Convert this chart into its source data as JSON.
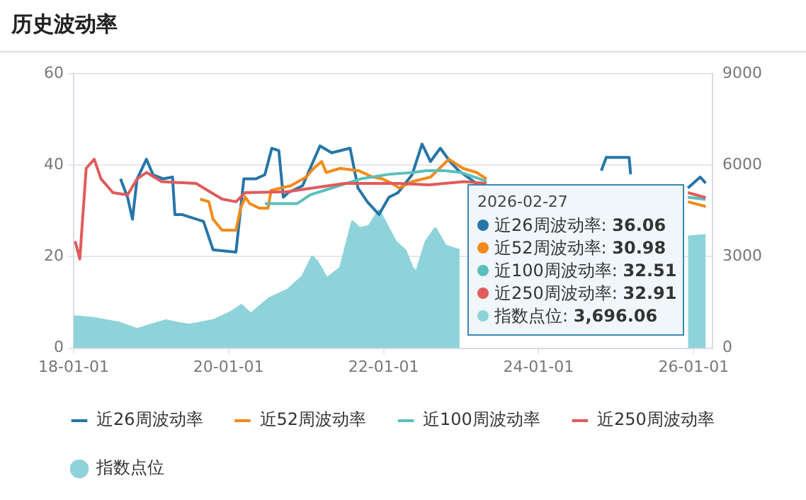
{
  "chart_data": {
    "type": "line",
    "title": "历史波动率",
    "xlim": [
      "2018-01-01",
      "2026-03-31"
    ],
    "xticks": [
      {
        "value": "2018-01-01",
        "label": "18-01-01"
      },
      {
        "value": "2020-01-01",
        "label": "20-01-01"
      },
      {
        "value": "2022-01-01",
        "label": "22-01-01"
      },
      {
        "value": "2024-01-01",
        "label": "24-01-01"
      },
      {
        "value": "2026-01-01",
        "label": "26-01-01"
      }
    ],
    "ylim": [
      0,
      60
    ],
    "yticks": [
      0,
      20,
      40,
      60
    ],
    "y2lim": [
      0,
      9000
    ],
    "y2ticks": [
      0,
      3000,
      6000,
      9000
    ],
    "grid": "y",
    "legend": "bottom",
    "series": [
      {
        "name": "近26周波动率",
        "color": "#2775a8",
        "x": [
          "2018-08-10",
          "2018-09-12",
          "2018-10-05",
          "2018-10-27",
          "2018-12-10",
          "2019-01-10",
          "2019-02-28",
          "2019-04-12",
          "2019-04-23",
          "2019-05-26",
          "2019-09-05",
          "2019-10-20",
          "2020-02-05",
          "2020-03-13",
          "2020-05-08",
          "2020-06-20",
          "2020-07-23",
          "2020-08-25",
          "2020-09-15",
          "2020-10-08",
          "2020-12-15",
          "2021-03-07",
          "2021-05-01",
          "2021-07-27",
          "2021-09-02",
          "2021-10-16",
          "2021-12-10",
          "2022-01-26",
          "2022-03-10",
          "2022-05-15",
          "2022-07-01",
          "2022-08-10",
          "2022-09-25",
          "2022-11-10",
          "2022-12-20",
          "2023-03-15",
          "2023-05-01",
          "2024-01-01",
          "2024-10-23",
          "2024-11-15",
          "2025-03-03",
          "2025-03-10",
          "2025-06-01",
          "2025-12-05",
          "2026-02-01",
          "2026-02-27"
        ],
        "values": [
          37,
          33,
          28.2,
          37,
          41.3,
          37.9,
          37,
          37.4,
          29.2,
          29.2,
          27.7,
          21.5,
          21,
          37,
          37,
          37.9,
          43.7,
          43.2,
          33,
          34,
          35.5,
          44.2,
          42.7,
          43.7,
          35,
          32,
          29.2,
          33,
          34,
          37.9,
          44.6,
          40.8,
          43.7,
          40.8,
          38.8,
          36,
          35.5,
          null,
          38.8,
          41.7,
          41.7,
          38,
          null,
          35,
          37.4,
          36.06
        ]
      },
      {
        "name": "近52周波动率",
        "color": "#f28b1a",
        "x": [
          "2019-08-20",
          "2019-09-30",
          "2019-10-20",
          "2019-12-01",
          "2020-02-05",
          "2020-02-27",
          "2020-03-20",
          "2020-04-10",
          "2020-05-25",
          "2020-07-05",
          "2020-07-20",
          "2020-10-20",
          "2021-01-01",
          "2021-02-05",
          "2021-03-15",
          "2021-04-05",
          "2021-06-10",
          "2021-09-05",
          "2021-11-10",
          "2021-12-25",
          "2022-02-10",
          "2022-03-15",
          "2022-05-15",
          "2022-08-10",
          "2022-11-05",
          "2023-01-10",
          "2023-03-15",
          "2023-05-01",
          "2024-06-01",
          "2025-12-05",
          "2026-02-27"
        ],
        "values": [
          32.6,
          32,
          28.2,
          25.8,
          25.8,
          30.6,
          33,
          31.6,
          30.6,
          30.6,
          34.5,
          35.5,
          37.4,
          39.3,
          40.8,
          38.4,
          39.3,
          38.8,
          37.4,
          37,
          36,
          35,
          36.4,
          37.4,
          41.3,
          39.3,
          38.4,
          37,
          null,
          32,
          30.98
        ]
      },
      {
        "name": "近100周波动率",
        "color": "#5bbfbb",
        "x": [
          "2020-06-20",
          "2020-11-20",
          "2021-01-20",
          "2021-05-01",
          "2021-09-15",
          "2022-01-25",
          "2022-05-20",
          "2022-07-20",
          "2022-10-15",
          "2023-01-01",
          "2023-05-01",
          "2024-06-01",
          "2025-12-05",
          "2026-02-27"
        ],
        "values": [
          31.6,
          31.6,
          33.5,
          35,
          37,
          38,
          38.4,
          38.8,
          38.8,
          38.4,
          36.5,
          null,
          33,
          32.51
        ]
      },
      {
        "name": "近250周波动率",
        "color": "#e05b5b",
        "x": [
          "2018-01-08",
          "2018-01-30",
          "2018-03-01",
          "2018-04-08",
          "2018-05-10",
          "2018-07-05",
          "2018-09-12",
          "2018-10-27",
          "2018-12-10",
          "2019-02-20",
          "2019-08-01",
          "2019-12-01",
          "2020-02-05",
          "2020-03-20",
          "2020-10-01",
          "2021-07-01",
          "2022-03-15",
          "2022-08-01",
          "2023-01-15",
          "2023-05-01",
          "2024-06-01",
          "2025-12-05",
          "2026-02-27"
        ],
        "values": [
          23.4,
          19.5,
          39.3,
          41.3,
          37,
          34,
          33.5,
          37,
          38.4,
          36.4,
          36,
          32.6,
          32,
          34,
          34.2,
          36,
          36,
          35.7,
          36.4,
          36,
          null,
          34,
          32.91
        ]
      },
      {
        "name": "指数点位",
        "type": "area",
        "axis": "y2",
        "color": "#8fd3da",
        "x": [
          "2018-01-01",
          "2018-04-08",
          "2018-07-30",
          "2018-10-27",
          "2019-03-10",
          "2019-06-28",
          "2019-10-20",
          "2020-01-15",
          "2020-03-01",
          "2020-04-15",
          "2020-07-10",
          "2020-10-08",
          "2020-12-15",
          "2021-01-30",
          "2021-02-20",
          "2021-04-08",
          "2021-06-12",
          "2021-08-07",
          "2021-09-10",
          "2021-10-25",
          "2021-12-10",
          "2022-01-01",
          "2022-02-25",
          "2022-04-12",
          "2022-05-15",
          "2022-06-05",
          "2022-07-20",
          "2022-09-01",
          "2022-10-20",
          "2022-12-25",
          "2023-04-01",
          "2024-06-01",
          "2025-12-05",
          "2026-02-27"
        ],
        "values": [
          1038,
          970,
          830,
          615,
          900,
          750,
          900,
          1180,
          1400,
          1110,
          1620,
          1910,
          2340,
          2990,
          2840,
          2270,
          2630,
          4140,
          3920,
          4000,
          4500,
          4210,
          3490,
          3200,
          2630,
          2480,
          3490,
          3920,
          3340,
          3200,
          null,
          null,
          3640,
          3696.06
        ]
      }
    ],
    "annotations": [
      "2026-02-27",
      "近26周波动率: 36.06",
      "近52周波动率: 30.98",
      "近100周波动率: 32.51",
      "近250周波动率: 32.91",
      "指数点位: 3,696.06"
    ]
  }
}
